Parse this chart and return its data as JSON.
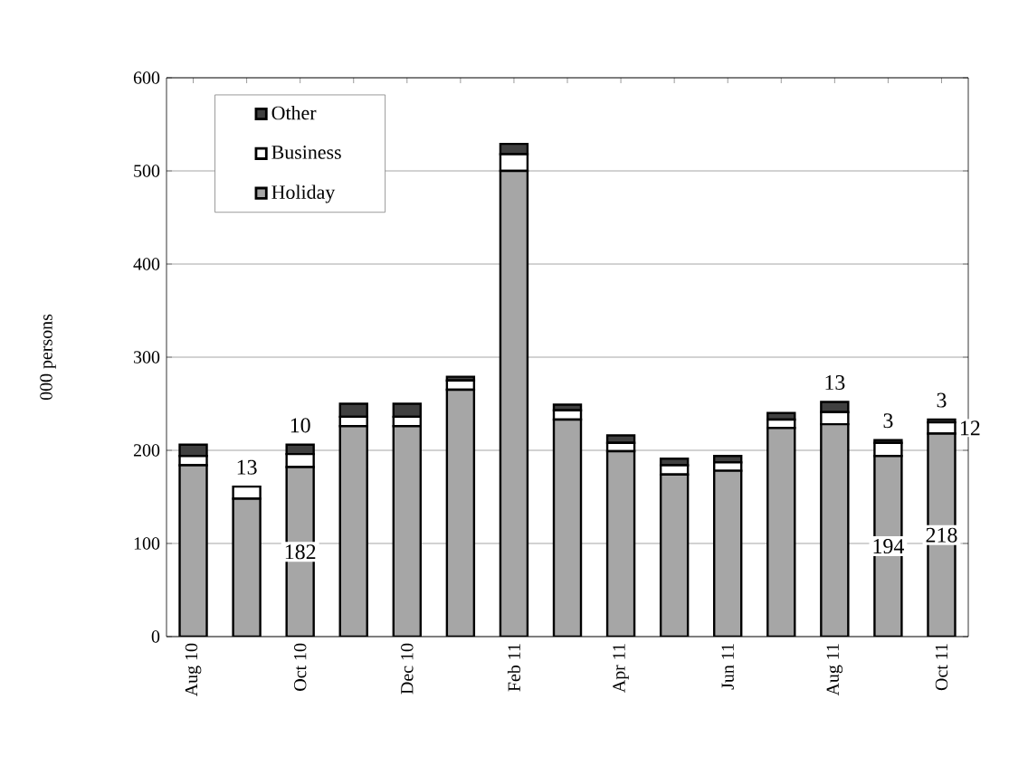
{
  "chart_data": {
    "type": "bar",
    "stacked": true,
    "ylabel": "000 persons",
    "categories": [
      "Aug 10",
      null,
      "Oct 10",
      null,
      "Dec 10",
      null,
      "Feb 11",
      null,
      "Apr 11",
      null,
      "Jun 11",
      null,
      "Aug 11",
      null,
      "Oct 11"
    ],
    "series": [
      {
        "name": "Holiday",
        "color": "#a6a6a6",
        "values": [
          184,
          148,
          182,
          226,
          226,
          265,
          500,
          233,
          199,
          174,
          178,
          224,
          228,
          194,
          218
        ],
        "value_labels": [
          null,
          null,
          "182",
          null,
          null,
          null,
          null,
          null,
          null,
          null,
          null,
          null,
          null,
          "194",
          "218"
        ]
      },
      {
        "name": "Business",
        "color": "#ffffff",
        "values": [
          10,
          13,
          14,
          10,
          10,
          10,
          18,
          10,
          9,
          10,
          9,
          9,
          13,
          14,
          12
        ],
        "value_labels": [
          null,
          "13",
          null,
          null,
          null,
          null,
          null,
          null,
          null,
          null,
          null,
          null,
          "13",
          null,
          "12"
        ]
      },
      {
        "name": "Other",
        "color": "#404040",
        "values": [
          12,
          0,
          10,
          14,
          14,
          4,
          11,
          6,
          8,
          7,
          7,
          7,
          11,
          3,
          3
        ],
        "value_labels": [
          null,
          null,
          "10",
          null,
          null,
          null,
          null,
          null,
          null,
          null,
          null,
          null,
          null,
          "3",
          "3"
        ]
      }
    ],
    "ylim": [
      0,
      600
    ],
    "yticks": [
      0,
      100,
      200,
      300,
      400,
      500,
      600
    ],
    "grid": "y",
    "legend": "top left"
  }
}
